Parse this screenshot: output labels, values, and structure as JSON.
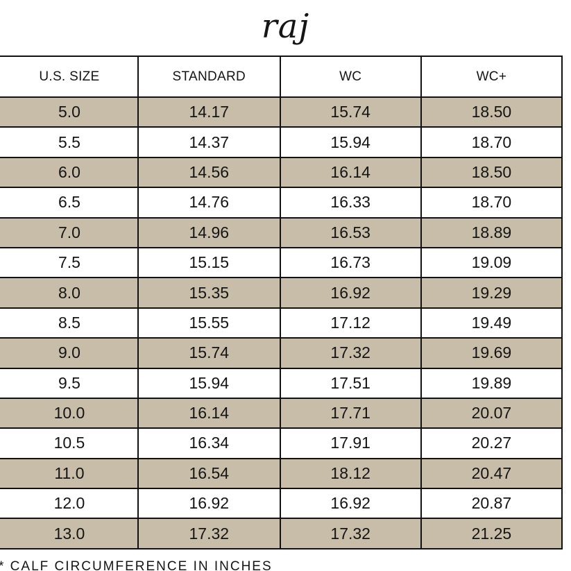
{
  "brand": "raj",
  "table": {
    "headers": [
      "U.S. SIZE",
      "STANDARD",
      "WC",
      "WC+"
    ],
    "rows": [
      [
        "5.0",
        "14.17",
        "15.74",
        "18.50"
      ],
      [
        "5.5",
        "14.37",
        "15.94",
        "18.70"
      ],
      [
        "6.0",
        "14.56",
        "16.14",
        "18.50"
      ],
      [
        "6.5",
        "14.76",
        "16.33",
        "18.70"
      ],
      [
        "7.0",
        "14.96",
        "16.53",
        "18.89"
      ],
      [
        "7.5",
        "15.15",
        "16.73",
        "19.09"
      ],
      [
        "8.0",
        "15.35",
        "16.92",
        "19.29"
      ],
      [
        "8.5",
        "15.55",
        "17.12",
        "19.49"
      ],
      [
        "9.0",
        "15.74",
        "17.32",
        "19.69"
      ],
      [
        "9.5",
        "15.94",
        "17.51",
        "19.89"
      ],
      [
        "10.0",
        "16.14",
        "17.71",
        "20.07"
      ],
      [
        "10.5",
        "16.34",
        "17.91",
        "20.27"
      ],
      [
        "11.0",
        "16.54",
        "18.12",
        "20.47"
      ],
      [
        "12.0",
        "16.92",
        "16.92",
        "20.87"
      ],
      [
        "13.0",
        "17.32",
        "17.32",
        "21.25"
      ]
    ]
  },
  "footnote": "* CALF CIRCUMFERENCE IN INCHES",
  "colors": {
    "shaded_row": "#c8bda8",
    "border": "#111111",
    "text": "#141414"
  }
}
